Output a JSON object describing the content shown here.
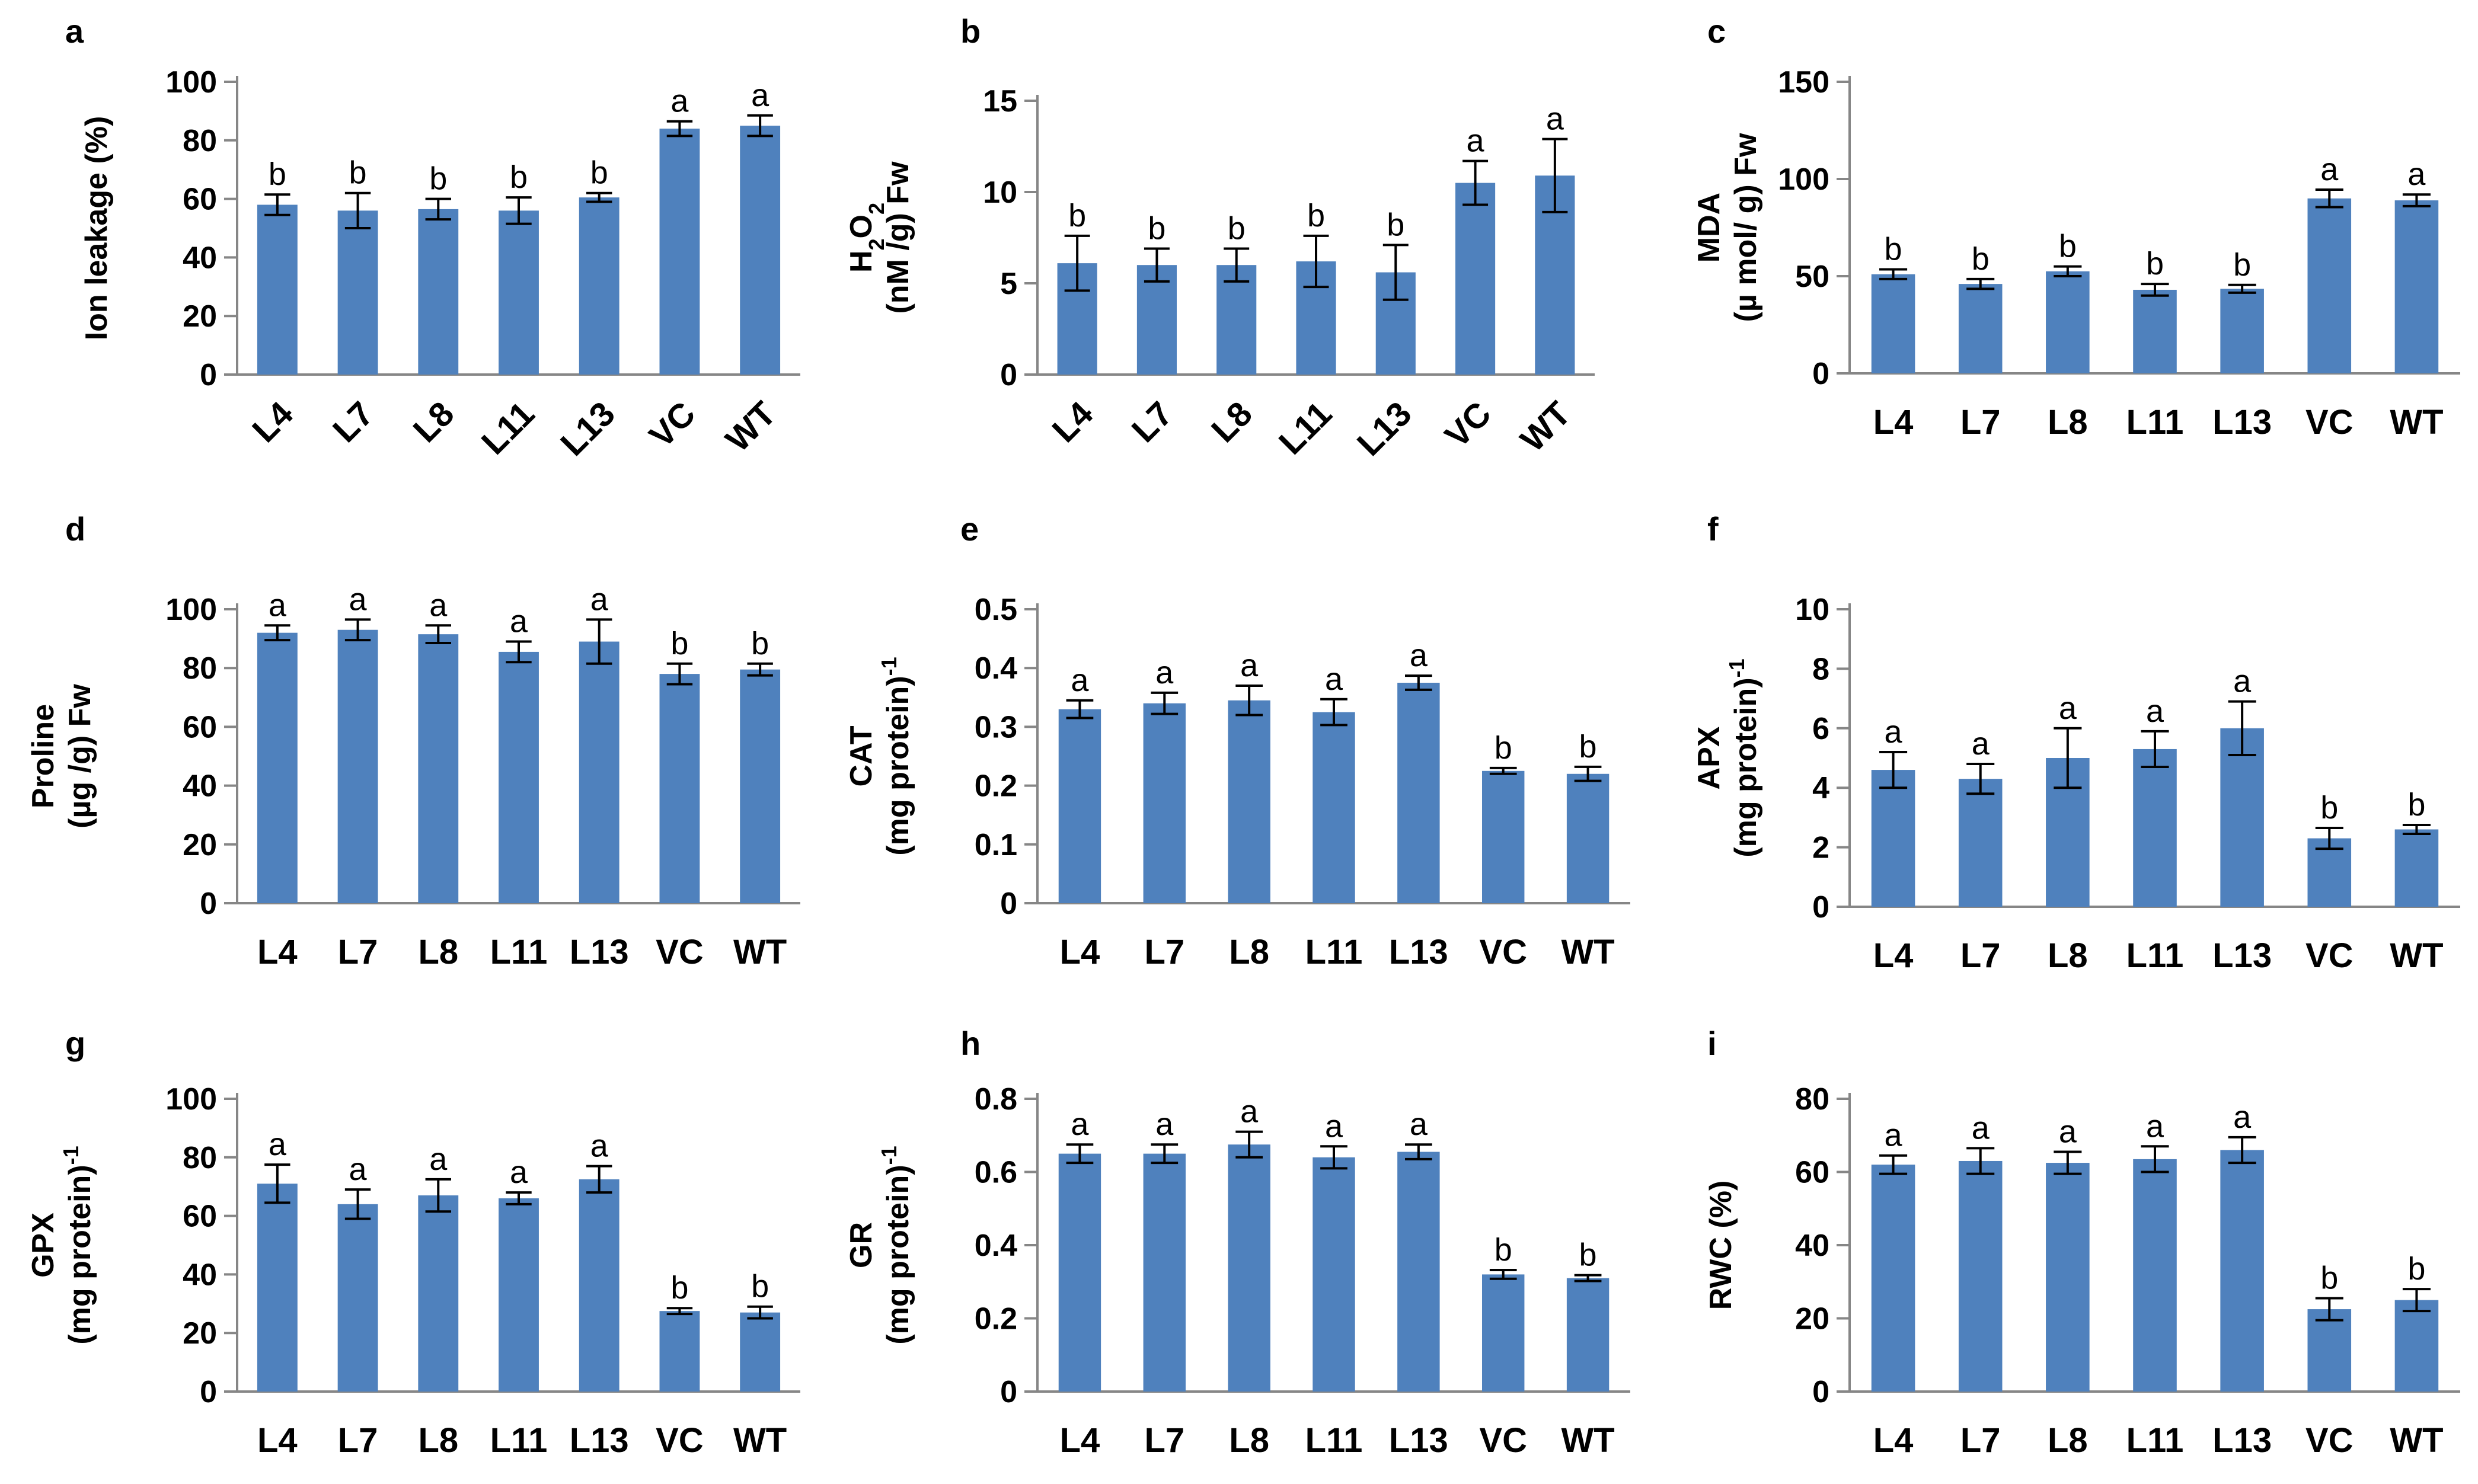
{
  "chart_data": [
    {
      "type": "bar",
      "panel": "a",
      "categories": [
        "L4",
        "L7",
        "L8",
        "L11",
        "L13",
        "VC",
        "WT"
      ],
      "values": [
        58,
        56,
        56.5,
        56,
        60.5,
        84,
        85
      ],
      "errors": [
        3.5,
        6,
        3.5,
        4.5,
        1.5,
        2.5,
        3.5
      ],
      "significance": [
        "b",
        "b",
        "b",
        "b",
        "b",
        "a",
        "a"
      ],
      "ylabel_lines": [
        "Ion leakage (%)"
      ],
      "ylim": [
        0,
        100
      ],
      "yticks": [
        0,
        20,
        40,
        60,
        80,
        100
      ],
      "rotate_x_labels": true,
      "bar_color": "#4f81bd"
    },
    {
      "type": "bar",
      "panel": "b",
      "categories": [
        "L4",
        "L7",
        "L8",
        "L11",
        "L13",
        "VC",
        "WT"
      ],
      "values": [
        6.1,
        6,
        6,
        6.2,
        5.6,
        10.5,
        10.9
      ],
      "errors": [
        1.5,
        0.9,
        0.9,
        1.4,
        1.5,
        1.2,
        2
      ],
      "significance": [
        "b",
        "b",
        "b",
        "b",
        "b",
        "a",
        "a"
      ],
      "ylabel_lines": [
        "H2O2",
        "(nM /g) Fw"
      ],
      "ylim": [
        0,
        15
      ],
      "yticks": [
        0,
        5,
        10,
        15
      ],
      "rotate_x_labels": true,
      "bar_color": "#4f81bd"
    },
    {
      "type": "bar",
      "panel": "c",
      "categories": [
        "L4",
        "L7",
        "L8",
        "L11",
        "L13",
        "VC",
        "WT"
      ],
      "values": [
        51,
        46,
        52.5,
        43,
        43.5,
        90,
        89
      ],
      "errors": [
        2.5,
        2.5,
        2.5,
        3,
        2,
        4.5,
        3
      ],
      "significance": [
        "b",
        "b",
        "b",
        "b",
        "b",
        "a",
        "a"
      ],
      "ylabel_lines": [
        "MDA",
        "(µ mol/ g) Fw"
      ],
      "ylim": [
        0,
        150
      ],
      "yticks": [
        0,
        50,
        100,
        150
      ],
      "rotate_x_labels": false,
      "bar_color": "#4f81bd"
    },
    {
      "type": "bar",
      "panel": "d",
      "categories": [
        "L4",
        "L7",
        "L8",
        "L11",
        "L13",
        "VC",
        "WT"
      ],
      "values": [
        92,
        93,
        91.5,
        85.5,
        89,
        78,
        79.5
      ],
      "errors": [
        2.5,
        3.5,
        3,
        3.5,
        7.5,
        3.5,
        2
      ],
      "significance": [
        "a",
        "a",
        "a",
        "a",
        "a",
        "b",
        "b"
      ],
      "ylabel_lines": [
        "Proline",
        "(µg /g) Fw"
      ],
      "ylim": [
        0,
        100
      ],
      "yticks": [
        0,
        20,
        40,
        60,
        80,
        100
      ],
      "rotate_x_labels": false,
      "bar_color": "#4f81bd"
    },
    {
      "type": "bar",
      "panel": "e",
      "categories": [
        "L4",
        "L7",
        "L8",
        "L11",
        "L13",
        "VC",
        "WT"
      ],
      "values": [
        0.33,
        0.34,
        0.345,
        0.325,
        0.375,
        0.225,
        0.22
      ],
      "errors": [
        0.015,
        0.018,
        0.025,
        0.022,
        0.012,
        0.005,
        0.012
      ],
      "significance": [
        "a",
        "a",
        "a",
        "a",
        "a",
        "b",
        "b"
      ],
      "ylabel_lines": [
        "CAT",
        "(mg protein)-1"
      ],
      "ylim": [
        0,
        0.5
      ],
      "yticks": [
        0,
        0.1,
        0.2,
        0.3,
        0.4,
        0.5
      ],
      "rotate_x_labels": false,
      "bar_color": "#4f81bd"
    },
    {
      "type": "bar",
      "panel": "f",
      "categories": [
        "L4",
        "L7",
        "L8",
        "L11",
        "L13",
        "VC",
        "WT"
      ],
      "values": [
        4.6,
        4.3,
        5,
        5.3,
        6,
        2.3,
        2.6
      ],
      "errors": [
        0.6,
        0.5,
        1,
        0.6,
        0.9,
        0.35,
        0.15
      ],
      "significance": [
        "a",
        "a",
        "a",
        "a",
        "a",
        "b",
        "b"
      ],
      "ylabel_lines": [
        "APX",
        "(mg protein)-1"
      ],
      "ylim": [
        0,
        10
      ],
      "yticks": [
        0,
        2,
        4,
        6,
        8,
        10
      ],
      "rotate_x_labels": false,
      "bar_color": "#4f81bd"
    },
    {
      "type": "bar",
      "panel": "g",
      "categories": [
        "L4",
        "L7",
        "L8",
        "L11",
        "L13",
        "VC",
        "WT"
      ],
      "values": [
        71,
        64,
        67,
        66,
        72.5,
        27.5,
        27
      ],
      "errors": [
        6.5,
        5,
        5.5,
        2,
        4.5,
        1,
        2
      ],
      "significance": [
        "a",
        "a",
        "a",
        "a",
        "a",
        "b",
        "b"
      ],
      "ylabel_lines": [
        "GPX",
        "(mg protein)-1"
      ],
      "ylim": [
        0,
        100
      ],
      "yticks": [
        0,
        20,
        40,
        60,
        80,
        100
      ],
      "rotate_x_labels": false,
      "bar_color": "#4f81bd"
    },
    {
      "type": "bar",
      "panel": "h",
      "categories": [
        "L4",
        "L7",
        "L8",
        "L11",
        "L13",
        "VC",
        "WT"
      ],
      "values": [
        0.65,
        0.65,
        0.675,
        0.64,
        0.655,
        0.32,
        0.31
      ],
      "errors": [
        0.025,
        0.025,
        0.035,
        0.03,
        0.02,
        0.012,
        0.008
      ],
      "significance": [
        "a",
        "a",
        "a",
        "a",
        "a",
        "b",
        "b"
      ],
      "ylabel_lines": [
        "GR",
        "(mg protein)-1"
      ],
      "ylim": [
        0,
        0.8
      ],
      "yticks": [
        0,
        0.2,
        0.4,
        0.6,
        0.8
      ],
      "rotate_x_labels": false,
      "bar_color": "#4f81bd"
    },
    {
      "type": "bar",
      "panel": "i",
      "categories": [
        "L4",
        "L7",
        "L8",
        "L11",
        "L13",
        "VC",
        "WT"
      ],
      "values": [
        62,
        63,
        62.5,
        63.5,
        66,
        22.5,
        25
      ],
      "errors": [
        2.5,
        3.5,
        3,
        3.5,
        3.5,
        3,
        3
      ],
      "significance": [
        "a",
        "a",
        "a",
        "a",
        "a",
        "b",
        "b"
      ],
      "ylabel_lines": [
        "RWC (%)"
      ],
      "ylim": [
        0,
        80
      ],
      "yticks": [
        0,
        20,
        40,
        60,
        80
      ],
      "rotate_x_labels": false,
      "bar_color": "#4f81bd"
    }
  ]
}
